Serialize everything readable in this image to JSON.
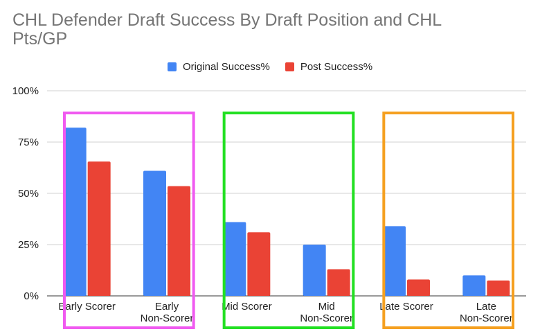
{
  "chart_data": {
    "type": "bar",
    "title": "CHL Defender Draft Success By Draft Position and CHL Pts/GP",
    "categories": [
      [
        "Early Scorer"
      ],
      [
        "Early",
        "Non-Scorer"
      ],
      [
        "Mid Scorer"
      ],
      [
        "Mid",
        "Non-Scorer"
      ],
      [
        "Late Scorer"
      ],
      [
        "Late",
        "Non-Scorer"
      ]
    ],
    "series": [
      {
        "name": "Original Success%",
        "color": "#4285F4",
        "values": [
          82,
          61,
          36,
          25,
          34,
          10
        ]
      },
      {
        "name": "Post Success%",
        "color": "#EA4335",
        "values": [
          65.5,
          53.5,
          31,
          13,
          8,
          7.5
        ]
      }
    ],
    "ylim": [
      0,
      100
    ],
    "yticks": [
      "0%",
      "25%",
      "50%",
      "75%",
      "100%"
    ],
    "grid": true,
    "legend_position": "top",
    "group_box_colors": [
      "#F05AF0",
      "#22E022",
      "#F5A020"
    ]
  }
}
